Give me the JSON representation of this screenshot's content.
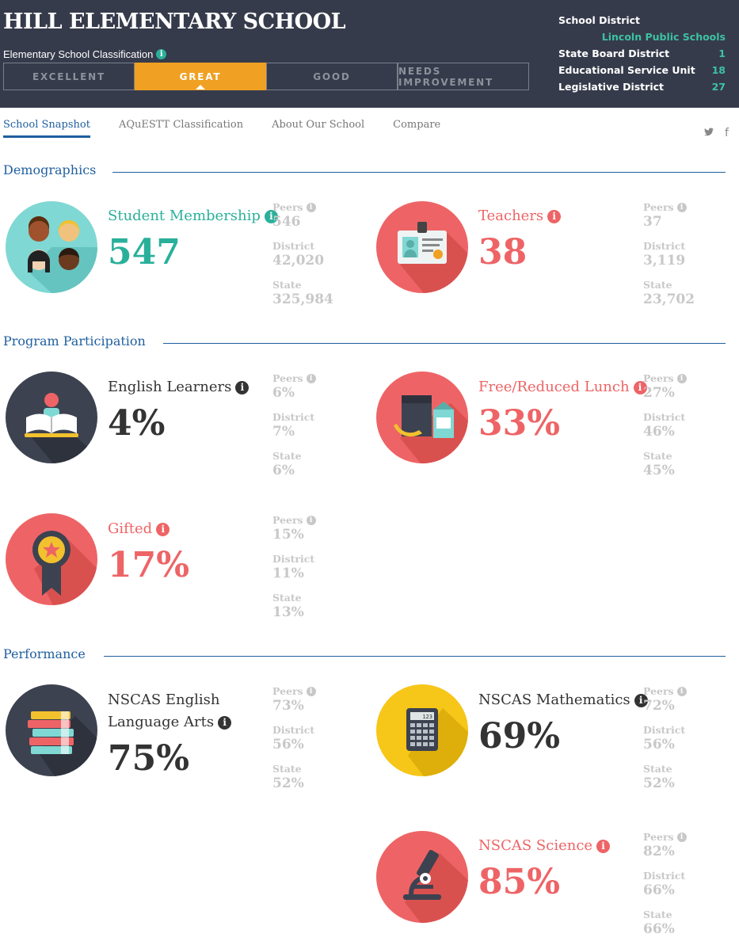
{
  "header": {
    "school_name": "HILL ELEMENTARY SCHOOL",
    "classification_label": "Elementary School Classification",
    "ratings": [
      {
        "label": "EXCELLENT",
        "active": false
      },
      {
        "label": "GREAT",
        "active": true
      },
      {
        "label": "GOOD",
        "active": false
      },
      {
        "label": "NEEDS IMPROVEMENT",
        "active": false
      }
    ],
    "district": {
      "school_district_label": "School District",
      "school_district_value": "Lincoln Public Schools",
      "state_board_label": "State Board District",
      "state_board_value": "1",
      "esu_label": "Educational Service Unit",
      "esu_value": "18",
      "legislative_label": "Legislative District",
      "legislative_value": "27"
    }
  },
  "tabs": [
    {
      "label": "School Snapshot",
      "active": true
    },
    {
      "label": "AQuESTT Classification",
      "active": false
    },
    {
      "label": "About Our School",
      "active": false
    },
    {
      "label": "Compare",
      "active": false
    }
  ],
  "social": {
    "twitter_icon": "twitter-icon",
    "facebook_icon": "facebook-icon",
    "twitter": "🐦",
    "facebook": "f"
  },
  "sections": {
    "demographics": "Demographics",
    "program": "Program Participation",
    "performance": "Performance"
  },
  "compare_labels": {
    "peers": "Peers",
    "district": "District",
    "state": "State"
  },
  "colors": {
    "teal": "#2ab09a",
    "coral": "#ee6466",
    "dark": "#333333",
    "header_bg": "#363b4b",
    "accent": "#f0a023",
    "link": "#1f5f9f"
  },
  "metrics": {
    "students": {
      "label": "Student Membership",
      "value": "547",
      "peers": "546",
      "district": "42,020",
      "state": "325,984",
      "icon": "students-icon"
    },
    "teachers": {
      "label": "Teachers",
      "value": "38",
      "peers": "37",
      "district": "3,119",
      "state": "23,702",
      "icon": "id-badge-icon"
    },
    "ell": {
      "label": "English Learners",
      "value": "4%",
      "peers": "6%",
      "district": "7%",
      "state": "6%",
      "icon": "book-reader-icon"
    },
    "lunch": {
      "label": "Free/Reduced Lunch",
      "value": "33%",
      "peers": "27%",
      "district": "46%",
      "state": "45%",
      "icon": "lunch-icon"
    },
    "gifted": {
      "label": "Gifted",
      "value": "17%",
      "peers": "15%",
      "district": "11%",
      "state": "13%",
      "icon": "award-ribbon-icon"
    },
    "ela": {
      "label_line1": "NSCAS English",
      "label_line2": "Language Arts",
      "value": "75%",
      "peers": "73%",
      "district": "56%",
      "state": "52%",
      "icon": "books-stack-icon"
    },
    "math": {
      "label": "NSCAS Mathematics",
      "value": "69%",
      "peers": "72%",
      "district": "56%",
      "state": "52%",
      "icon": "calculator-icon",
      "display": "123"
    },
    "science": {
      "label": "NSCAS Science",
      "value": "85%",
      "peers": "82%",
      "district": "66%",
      "state": "66%",
      "icon": "microscope-icon"
    }
  }
}
